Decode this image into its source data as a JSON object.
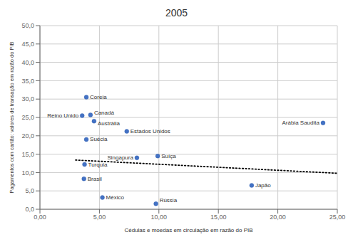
{
  "chart_data": {
    "type": "scatter",
    "title": "2005",
    "x_label": "Cédulas e moedas em circulação em razão do PIB",
    "y_label": "Pagamentos com cartão: valores de transação em razão do PIB",
    "xlim": [
      0,
      25
    ],
    "ylim": [
      0,
      50
    ],
    "xticks": [
      {
        "value": 0,
        "label": "0,00"
      },
      {
        "value": 5,
        "label": "5,00"
      },
      {
        "value": 10,
        "label": "10,00"
      },
      {
        "value": 15,
        "label": "15,00"
      },
      {
        "value": 20,
        "label": "20,00"
      },
      {
        "value": 25,
        "label": "25,00"
      }
    ],
    "yticks": [
      {
        "value": 0,
        "label": "0,0"
      },
      {
        "value": 5,
        "label": "5,0"
      },
      {
        "value": 10,
        "label": "10,0"
      },
      {
        "value": 15,
        "label": "15,0"
      },
      {
        "value": 20,
        "label": "20,0"
      },
      {
        "value": 25,
        "label": "25,0"
      },
      {
        "value": 30,
        "label": "30,0"
      },
      {
        "value": 35,
        "label": "35,0"
      },
      {
        "value": 40,
        "label": "40,0"
      },
      {
        "value": 45,
        "label": "45,0"
      },
      {
        "value": 50,
        "label": "50,0"
      }
    ],
    "grid": true,
    "series": [
      {
        "type": "scatter",
        "marker": "circle",
        "color": "#4472c4",
        "x": [
          3.9,
          3.55,
          4.25,
          4.55,
          7.3,
          3.9,
          8.15,
          9.9,
          3.75,
          3.7,
          5.25,
          9.75,
          17.8,
          23.8
        ],
        "values": [
          30.5,
          25.5,
          25.7,
          24.0,
          21.2,
          19.0,
          14.0,
          14.5,
          12.2,
          8.3,
          3.2,
          1.5,
          6.5,
          23.5
        ],
        "labels": [
          "Coreia",
          "Reino Unido",
          "Canadá",
          "Austrália",
          "Estados Unidos",
          "Suécia",
          "Singapura",
          "Suíça",
          "Turquia",
          "Brasil",
          "México",
          "Rússia",
          "Japão",
          "Arábia Saudita"
        ]
      },
      {
        "type": "line",
        "line_style": "dotted",
        "color": "#000000",
        "x": [
          3.0,
          25.0
        ],
        "values": [
          13.4,
          9.8
        ]
      }
    ]
  }
}
